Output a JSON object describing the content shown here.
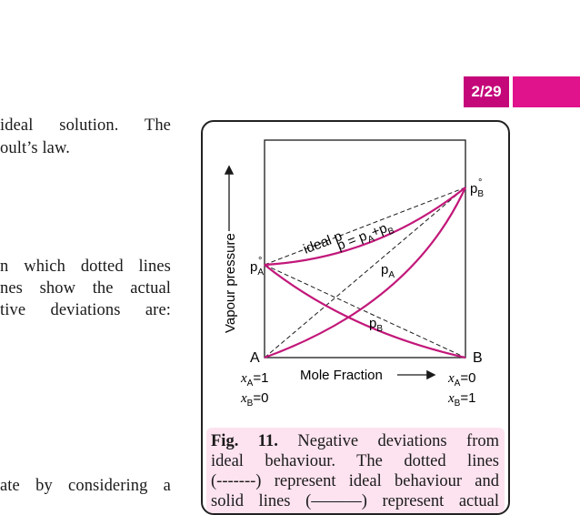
{
  "page_tab": {
    "number": "2/29"
  },
  "text_left": [
    "ideal solution. The",
    "oult’s law.",
    "n which dotted lines",
    "nes show the actual",
    "tive deviations are:",
    "ate by considering a"
  ],
  "diagram": {
    "y_axis_label": "Vapour pressure",
    "x_axis_label": "Mole Fraction",
    "corner_left": "A",
    "corner_right": "B",
    "left_bottom": {
      "xa": "x",
      "xa_sub": "A",
      "xa_val": "=1",
      "xb": "x",
      "xb_sub": "B",
      "xb_val": "=0"
    },
    "right_bottom": {
      "xa": "x",
      "xa_sub": "A",
      "xa_val": "=0",
      "xb": "x",
      "xb_sub": "B",
      "xb_val": "=1"
    },
    "pA0": {
      "main": "p",
      "sub": "A",
      "sup": "°"
    },
    "pB0": {
      "main": "p",
      "sub": "B",
      "sup": "°"
    },
    "ideal_label": "ideal p",
    "total_label": {
      "p1": "p = p",
      "sub1": "A",
      "plus": "+p",
      "sub2": "B"
    },
    "pA_label": {
      "main": "p",
      "sub": "A"
    },
    "pB_label": {
      "main": "p",
      "sub": "B"
    },
    "colors": {
      "curve": "#c2187a",
      "dashed": "#1a1a1a",
      "frame": "#1a1a1a"
    }
  },
  "caption": {
    "fig_label": "Fig. 11.",
    "lines": [
      "Negative deviations from",
      "ideal behaviour. The dotted lines",
      "(-------) represent ideal behaviour and",
      "solid lines (———) represent actual"
    ]
  }
}
